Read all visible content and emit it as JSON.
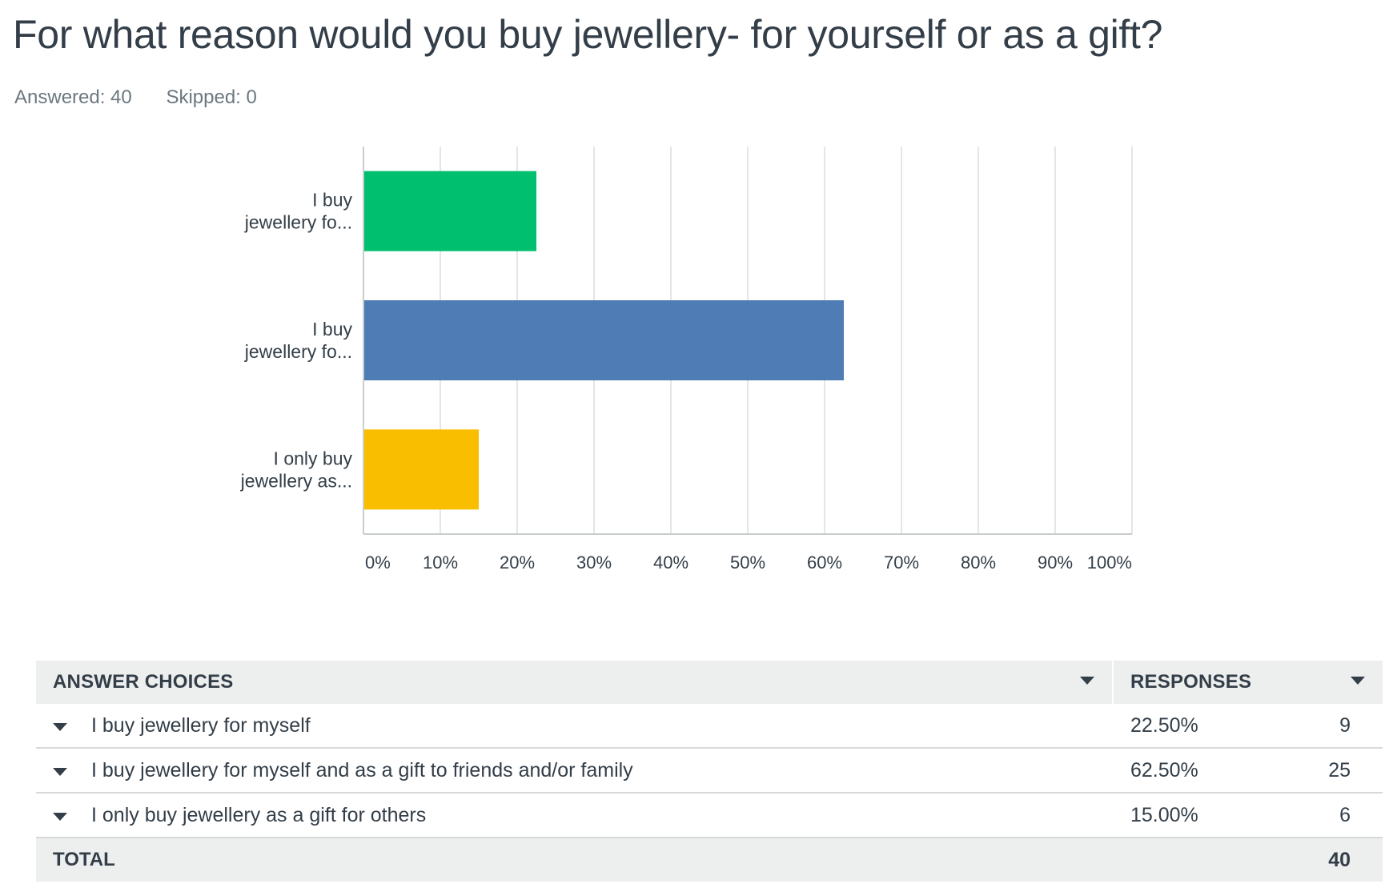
{
  "question": {
    "title": "For what reason would you buy jewellery- for yourself or as a gift?",
    "answered_label": "Answered: 40",
    "skipped_label": "Skipped: 0"
  },
  "chart_data": {
    "type": "bar",
    "orientation": "horizontal",
    "categories": [
      [
        "I buy",
        "jewellery fo..."
      ],
      [
        "I buy",
        "jewellery fo..."
      ],
      [
        "I only buy",
        "jewellery as..."
      ]
    ],
    "values": [
      22.5,
      62.5,
      15.0
    ],
    "colors": [
      "#00bf6f",
      "#507cb6",
      "#f9be00"
    ],
    "xlim": [
      0,
      100
    ],
    "xticks": [
      "0%",
      "10%",
      "20%",
      "30%",
      "40%",
      "50%",
      "60%",
      "70%",
      "80%",
      "90%",
      "100%"
    ],
    "xtick_values": [
      0,
      10,
      20,
      30,
      40,
      50,
      60,
      70,
      80,
      90,
      100
    ],
    "grid": true,
    "gridline_color": "#e3e5e6",
    "axis_color": "#c9cdce"
  },
  "table": {
    "header_choice": "ANSWER CHOICES",
    "header_responses": "RESPONSES",
    "rows": [
      {
        "choice": "I buy jewellery for myself",
        "percent": "22.50%",
        "count": "9"
      },
      {
        "choice": "I buy jewellery for myself and as a gift to friends and/or family",
        "percent": "62.50%",
        "count": "25"
      },
      {
        "choice": "I only buy jewellery as a gift for others",
        "percent": "15.00%",
        "count": "6"
      }
    ],
    "total_label": "TOTAL",
    "total_count": "40"
  }
}
